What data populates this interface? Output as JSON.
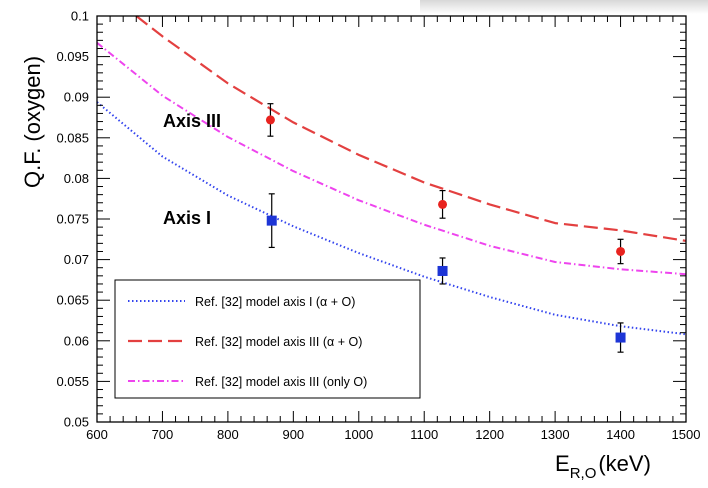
{
  "chart_data": {
    "type": "scatter",
    "title": "",
    "ylabel": "Q.F. (oxygen)",
    "xlabel_main": "E",
    "xlabel_sub": "R,O",
    "xlabel_unit": "(keV)",
    "xlim": [
      600,
      1500
    ],
    "ylim": [
      0.05,
      0.1
    ],
    "x_ticks": [
      600,
      700,
      800,
      900,
      1000,
      1100,
      1200,
      1300,
      1400,
      1500
    ],
    "y_ticks": [
      0.05,
      0.055,
      0.06,
      0.065,
      0.07,
      0.075,
      0.08,
      0.085,
      0.09,
      0.095,
      0.1
    ],
    "y_tick_labels": [
      "0.05",
      "0.055",
      "0.06",
      "0.065",
      "0.07",
      "0.075",
      "0.08",
      "0.085",
      "0.09",
      "0.095",
      "0.1"
    ],
    "grid": false,
    "legend_position": "bottom-left",
    "annotations": [
      {
        "text": "Axis III",
        "x": 670,
        "y": 0.0865
      },
      {
        "text": "Axis I",
        "x": 670,
        "y": 0.0755
      }
    ],
    "series": [
      {
        "name": "Ref. [32] model axis I (α + O)",
        "kind": "line",
        "style": "dotted",
        "color": "#3344ee",
        "x": [
          600,
          700,
          800,
          900,
          1000,
          1100,
          1200,
          1300,
          1400,
          1500
        ],
        "y": [
          0.0894,
          0.0827,
          0.0779,
          0.0741,
          0.0708,
          0.0679,
          0.0654,
          0.0632,
          0.0618,
          0.0608
        ]
      },
      {
        "name": "Ref. [32] model axis III (α + O)",
        "kind": "line",
        "style": "dashed",
        "color": "#e34040",
        "x": [
          660,
          700,
          800,
          900,
          1000,
          1100,
          1200,
          1300,
          1400,
          1500
        ],
        "y": [
          0.1,
          0.0975,
          0.0917,
          0.0869,
          0.0829,
          0.0795,
          0.0768,
          0.0745,
          0.0736,
          0.0723
        ]
      },
      {
        "name": "Ref. [32] model axis III (only O)",
        "kind": "line",
        "style": "dashdot",
        "color": "#ee44ee",
        "x": [
          600,
          700,
          800,
          900,
          1000,
          1100,
          1200,
          1300,
          1400,
          1500
        ],
        "y": [
          0.0967,
          0.0902,
          0.0851,
          0.0809,
          0.0773,
          0.0743,
          0.0717,
          0.0697,
          0.0688,
          0.0682
        ]
      },
      {
        "kind": "points",
        "marker": "circle",
        "color": "#e8231f",
        "x": [
          865,
          1128,
          1400
        ],
        "y": [
          0.0872,
          0.0768,
          0.071
        ],
        "yerr": [
          0.002,
          0.0017,
          0.0015
        ]
      },
      {
        "kind": "points",
        "marker": "square",
        "color": "#1d35d6",
        "x": [
          867,
          1128,
          1400
        ],
        "y": [
          0.0748,
          0.0686,
          0.0604
        ],
        "yerr": [
          0.0033,
          0.0016,
          0.0018
        ]
      }
    ]
  }
}
